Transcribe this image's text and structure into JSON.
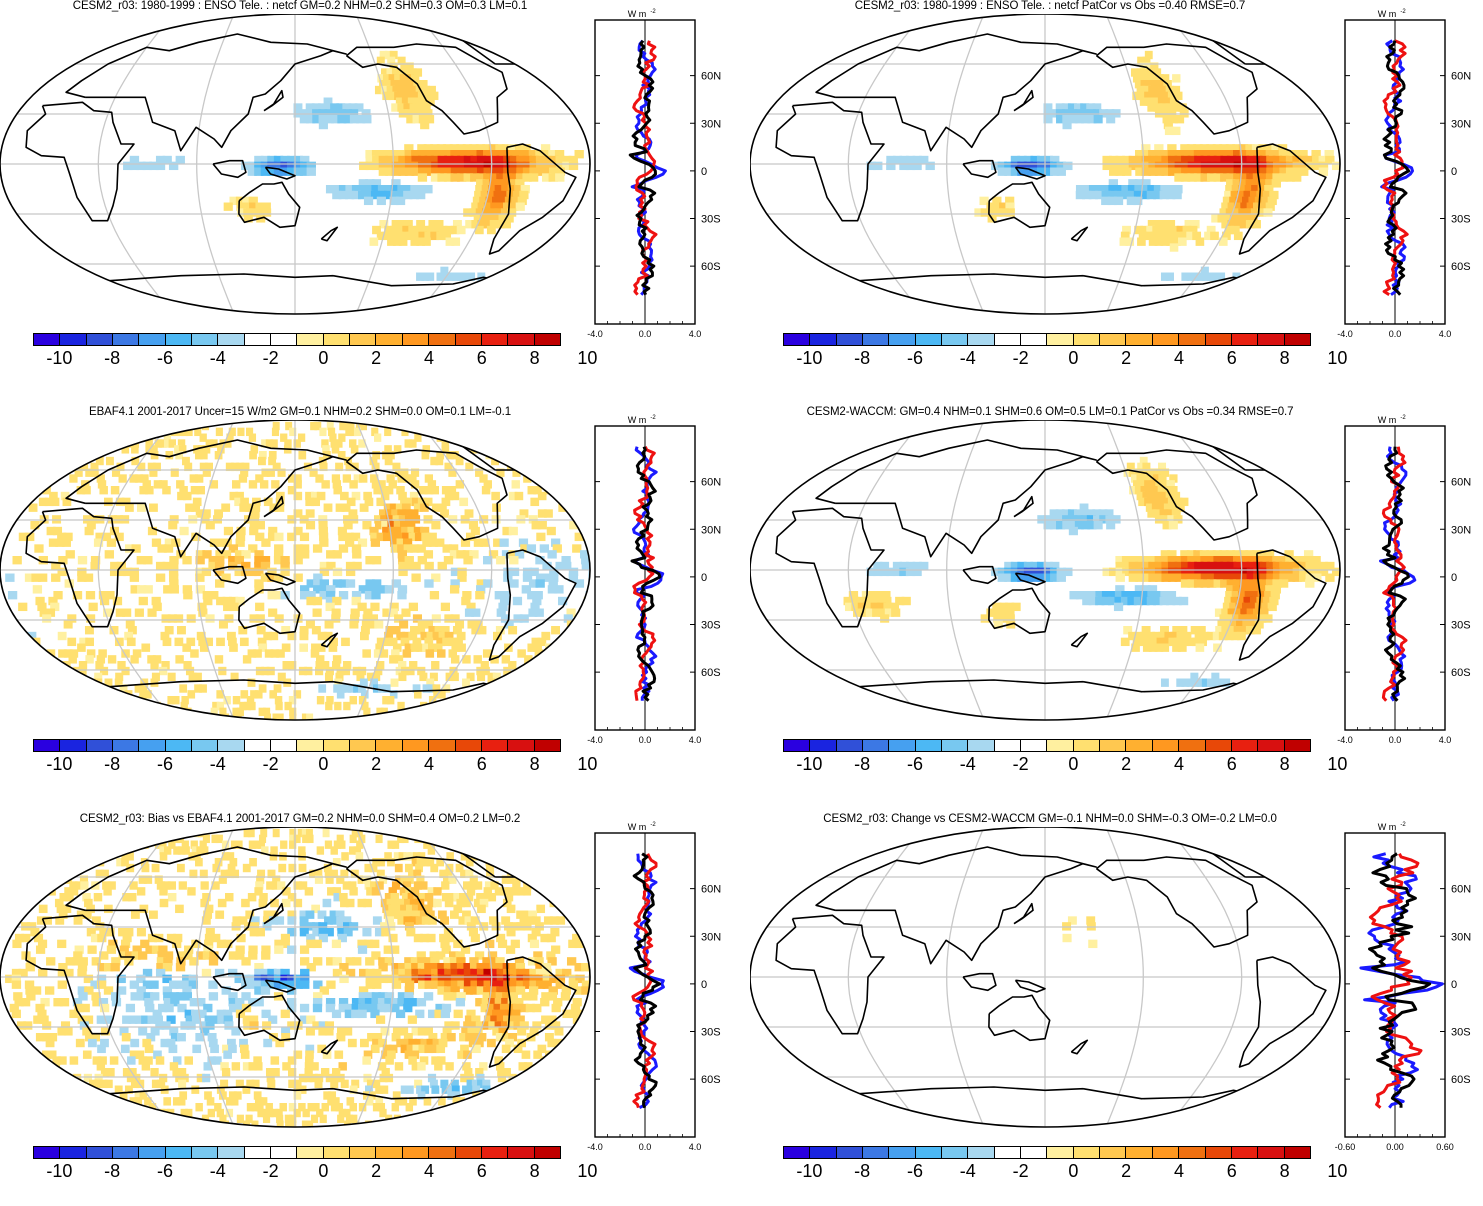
{
  "colorbar": {
    "colors": [
      "#2a00e0",
      "#1a24e0",
      "#3050d8",
      "#3c78e4",
      "#46a0f0",
      "#4cb8f4",
      "#78c8f0",
      "#a8d8f0",
      "#ffffff",
      "#ffffff",
      "#fff0a0",
      "#ffe070",
      "#ffc850",
      "#ffb030",
      "#ff9820",
      "#f07010",
      "#e84808",
      "#e82010",
      "#d81010",
      "#c00000"
    ],
    "labels": [
      "-10",
      "-8",
      "-6",
      "-4",
      "-2",
      "0",
      "2",
      "4",
      "6",
      "8",
      "10"
    ]
  },
  "zonal": {
    "unit": "W m",
    "unit_sup": "-2",
    "lat_labels": [
      "60N",
      "30N",
      "0",
      "30S",
      "60S"
    ]
  },
  "panels": [
    {
      "title": "CESM2_r03: 1980-1999 : ENSO Tele. : netcf GM=0.2 NHM=0.2 SHM=0.3 OM=0.3 LM=0.1",
      "x_ticks": [
        "-4.0",
        "0.0",
        "4.0"
      ],
      "pattern": "model",
      "intensity": 1.0,
      "noise": 0.15
    },
    {
      "title": "CESM2_r03: 1980-1999 : ENSO Tele. : netcf PatCor vs Obs =0.40 RMSE=0.7",
      "x_ticks": [
        "-4.0",
        "0.0",
        "4.0"
      ],
      "pattern": "model",
      "intensity": 1.0,
      "noise": 0.15
    },
    {
      "title": "EBAF4.1 2001-2017 Uncer=15 W/m2 GM=0.1 NHM=0.2 SHM=0.0 OM=0.1 LM=-0.1",
      "x_ticks": [
        "-4.0",
        "0.0",
        "4.0"
      ],
      "pattern": "obs",
      "intensity": 0.8,
      "noise": 0.5
    },
    {
      "title": "CESM2-WACCM: GM=0.4 NHM=0.1 SHM=0.6 OM=0.5 LM=0.1 PatCor vs Obs =0.34 RMSE=0.7",
      "x_ticks": [
        "-4.0",
        "0.0",
        "4.0"
      ],
      "pattern": "waccm",
      "intensity": 1.05,
      "noise": 0.15
    },
    {
      "title": "CESM2_r03: Bias vs EBAF4.1 2001-2017 GM=0.2 NHM=0.0 SHM=0.4 OM=0.2 LM=0.2",
      "x_ticks": [
        "-4.0",
        "0.0",
        "4.0"
      ],
      "pattern": "bias",
      "intensity": 0.9,
      "noise": 0.55
    },
    {
      "title": "CESM2_r03: Change vs CESM2-WACCM GM=-0.1 NHM=0.0 SHM=-0.3 OM=-0.2 LM=0.0",
      "x_ticks": [
        "-0.60",
        "0.00",
        "0.60"
      ],
      "pattern": "change",
      "intensity": 0.3,
      "noise": 0.25
    }
  ]
}
